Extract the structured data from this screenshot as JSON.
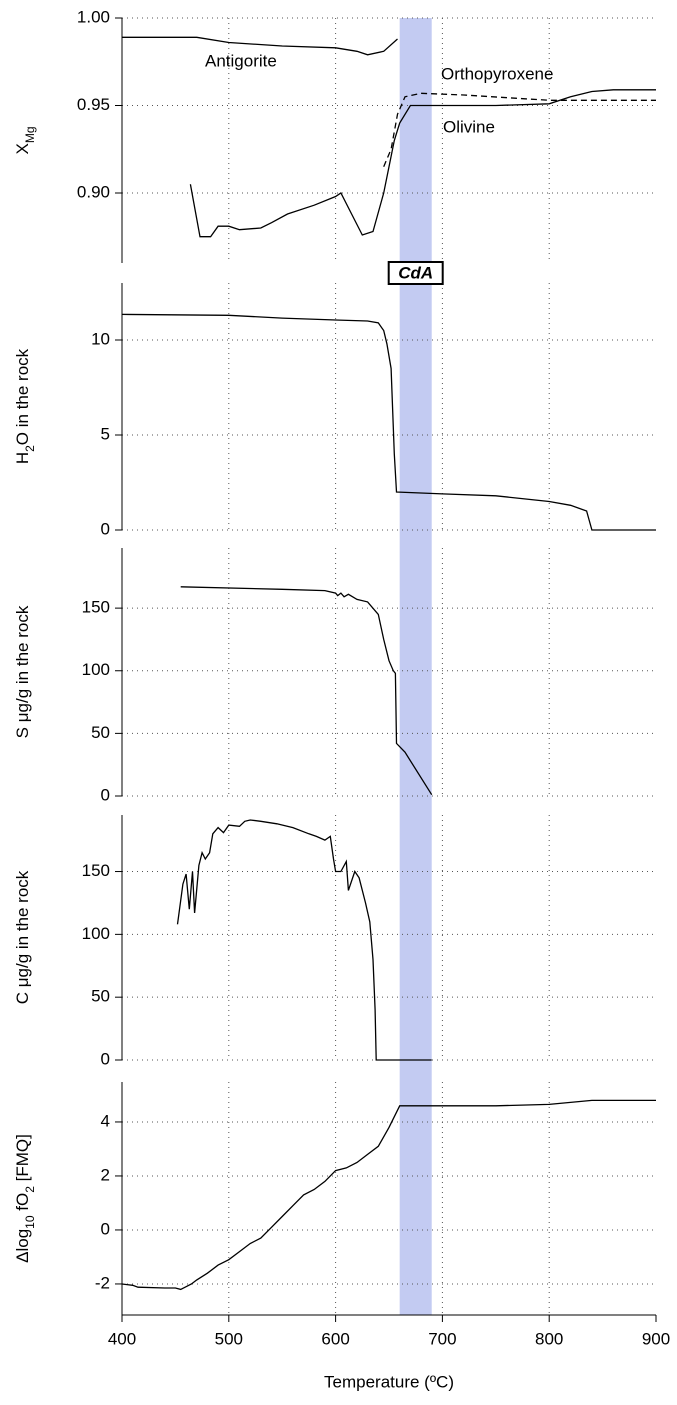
{
  "chart_data": [
    {
      "type": "line",
      "y_label": [
        "X",
        "Mg"
      ],
      "xlim": [
        400,
        900
      ],
      "ylim": [
        0.86,
        1.0
      ],
      "yticks": [
        {
          "value": 0.9,
          "label": "0.90"
        },
        {
          "value": 0.95,
          "label": "0.95"
        },
        {
          "value": 1.0,
          "label": "1.00"
        }
      ],
      "grid": true,
      "band": {
        "x": [
          660,
          690
        ],
        "label": "CdA",
        "color": "#c3cbf2"
      },
      "series": [
        {
          "name": "Antigorite",
          "color": "#000000",
          "style": "solid",
          "x": [
            400,
            450,
            470,
            500,
            550,
            600,
            620,
            630,
            645,
            658
          ],
          "values": [
            0.989,
            0.989,
            0.989,
            0.986,
            0.984,
            0.983,
            0.981,
            0.979,
            0.981,
            0.988
          ]
        },
        {
          "name": "Olivine",
          "color": "#000000",
          "style": "solid",
          "x": [
            464,
            473,
            483,
            490,
            500,
            510,
            530,
            540,
            555,
            580,
            600,
            605,
            615,
            625,
            635,
            645,
            655,
            660,
            670,
            700,
            750,
            800,
            820,
            840,
            860,
            900
          ],
          "values": [
            0.905,
            0.875,
            0.875,
            0.881,
            0.881,
            0.879,
            0.88,
            0.883,
            0.888,
            0.893,
            0.898,
            0.9,
            0.888,
            0.876,
            0.878,
            0.9,
            0.93,
            0.94,
            0.95,
            0.95,
            0.95,
            0.951,
            0.955,
            0.958,
            0.959,
            0.959
          ]
        },
        {
          "name": "Orthopyroxene",
          "color": "#000000",
          "style": "dashed",
          "x": [
            645,
            652,
            658,
            665,
            680,
            720,
            800,
            900
          ],
          "values": [
            0.915,
            0.925,
            0.945,
            0.955,
            0.957,
            0.956,
            0.953,
            0.953
          ]
        }
      ]
    },
    {
      "type": "line",
      "y_label": [
        "H",
        "2",
        "O in the rock"
      ],
      "xlim": [
        400,
        900
      ],
      "ylim": [
        0,
        13
      ],
      "yticks": [
        0,
        5,
        10
      ],
      "grid": true,
      "series": [
        {
          "color": "#000000",
          "style": "solid",
          "x": [
            400,
            500,
            550,
            600,
            630,
            640,
            645,
            648,
            652,
            655,
            657,
            700,
            750,
            800,
            820,
            835,
            840,
            900
          ],
          "values": [
            11.35,
            11.3,
            11.15,
            11.05,
            11.0,
            10.9,
            10.5,
            9.8,
            8.5,
            4,
            2.0,
            1.9,
            1.8,
            1.5,
            1.3,
            1.0,
            0,
            0
          ]
        }
      ]
    },
    {
      "type": "line",
      "y_label": [
        "S μg/g in the rock"
      ],
      "xlim": [
        400,
        900
      ],
      "ylim": [
        0,
        198
      ],
      "yticks": [
        0,
        50,
        100,
        150
      ],
      "grid": true,
      "series": [
        {
          "color": "#000000",
          "style": "solid",
          "x": [
            455,
            550,
            590,
            600,
            602,
            605,
            608,
            612,
            620,
            630,
            640,
            645,
            650,
            654,
            656,
            657,
            665,
            690
          ],
          "values": [
            167,
            165,
            164,
            162,
            160,
            162,
            159,
            161,
            157,
            155,
            145,
            125,
            108,
            100,
            98,
            42,
            35,
            1
          ]
        }
      ]
    },
    {
      "type": "line",
      "y_label": [
        "C μg/g in the rock"
      ],
      "xlim": [
        400,
        900
      ],
      "ylim": [
        0,
        195
      ],
      "yticks": [
        0,
        50,
        100,
        150
      ],
      "grid": true,
      "series": [
        {
          "color": "#000000",
          "style": "solid",
          "x": [
            452,
            457,
            460,
            463,
            466,
            468,
            472,
            475,
            478,
            482,
            485,
            490,
            495,
            500,
            510,
            515,
            520,
            530,
            545,
            560,
            575,
            582,
            590,
            595,
            598,
            600,
            605,
            610,
            612,
            618,
            622,
            628,
            632,
            635,
            637,
            638,
            690
          ],
          "values": [
            108,
            140,
            148,
            120,
            150,
            117,
            155,
            165,
            160,
            165,
            180,
            185,
            181,
            187,
            186,
            190,
            191,
            190,
            188,
            185,
            180,
            178,
            175,
            178,
            160,
            150,
            150,
            158,
            135,
            150,
            145,
            125,
            110,
            80,
            40,
            0,
            0
          ]
        }
      ]
    },
    {
      "type": "line",
      "y_label": [
        "Δlog",
        "10",
        " fO",
        "2",
        " [FMQ]"
      ],
      "xlim": [
        400,
        900
      ],
      "ylim": [
        -3.15,
        5.48
      ],
      "yticks": [
        -2,
        0,
        2,
        4
      ],
      "xticks": [
        400,
        500,
        600,
        700,
        800,
        900
      ],
      "x_label": "Temperature (ºC)",
      "grid": true,
      "series": [
        {
          "color": "#000000",
          "style": "solid",
          "x": [
            400,
            410,
            415,
            440,
            450,
            455,
            460,
            465,
            470,
            480,
            490,
            500,
            510,
            520,
            530,
            540,
            550,
            560,
            570,
            580,
            590,
            600,
            610,
            620,
            630,
            640,
            650,
            660,
            680,
            700,
            750,
            800,
            840,
            900
          ],
          "values": [
            -2.0,
            -2.05,
            -2.12,
            -2.15,
            -2.15,
            -2.2,
            -2.1,
            -2.0,
            -1.85,
            -1.6,
            -1.3,
            -1.1,
            -0.8,
            -0.5,
            -0.3,
            0.1,
            0.5,
            0.9,
            1.3,
            1.5,
            1.8,
            2.2,
            2.3,
            2.5,
            2.8,
            3.1,
            3.8,
            4.6,
            4.6,
            4.6,
            4.6,
            4.65,
            4.8,
            4.8
          ]
        }
      ]
    }
  ]
}
